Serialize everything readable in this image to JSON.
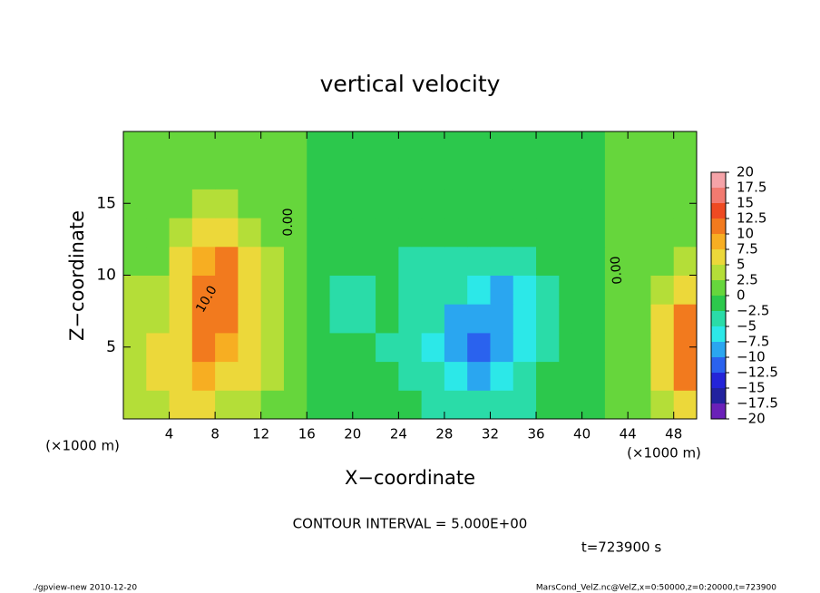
{
  "chart_data": {
    "type": "contour",
    "title": "vertical velocity",
    "xlabel": "X−coordinate",
    "ylabel": "Z−coordinate",
    "x_unit": "(×1000 m)",
    "y_unit": "(×1000 m)",
    "xlim": [
      0,
      50
    ],
    "ylim": [
      0,
      20
    ],
    "xticks": [
      4,
      8,
      12,
      16,
      20,
      24,
      28,
      32,
      36,
      40,
      44,
      48
    ],
    "yticks": [
      5,
      10,
      15
    ],
    "x": [
      1,
      3,
      5,
      7,
      9,
      11,
      13,
      15,
      17,
      19,
      21,
      23,
      25,
      27,
      29,
      31,
      33,
      35,
      37,
      39,
      41,
      43,
      45,
      47,
      49
    ],
    "y": [
      1,
      3,
      5,
      7,
      9,
      11,
      13,
      15,
      17,
      19
    ],
    "z": [
      [
        3,
        4,
        6,
        5,
        4,
        3,
        2,
        1,
        -1,
        -1,
        -1,
        -1,
        -2,
        -3,
        -4,
        -5,
        -4,
        -3,
        -1,
        -1,
        -1,
        1,
        2,
        4,
        6
      ],
      [
        3,
        5,
        7,
        8,
        7,
        5,
        3,
        1,
        -1,
        -1,
        -1,
        -2,
        -3,
        -5,
        -7,
        -9,
        -7,
        -4,
        -2,
        -1,
        -1,
        1,
        2,
        5,
        10
      ],
      [
        4,
        5,
        7,
        10,
        9,
        6,
        3,
        1,
        -1,
        -2,
        -2,
        -3,
        -4,
        -6,
        -9,
        -12,
        -10,
        -6,
        -3,
        -1,
        -1,
        1,
        2,
        6,
        12
      ],
      [
        4,
        4,
        6,
        11,
        11,
        7,
        3,
        1,
        -1,
        -3,
        -3,
        -2,
        -3,
        -5,
        -8,
        -9,
        -10,
        -7,
        -3,
        -2,
        -1,
        1,
        2,
        5,
        10
      ],
      [
        3,
        3,
        5,
        11,
        12,
        7,
        3,
        1,
        -1,
        -3,
        -3,
        -2,
        -3,
        -4,
        -5,
        -7,
        -8,
        -6,
        -3,
        -2,
        -1,
        1,
        1,
        4,
        6
      ],
      [
        1,
        2,
        5,
        9,
        10,
        6,
        3,
        1,
        -1,
        -2,
        -2,
        -2,
        -3,
        -3,
        -4,
        -5,
        -4,
        -3,
        -2,
        -1,
        -1,
        1,
        1,
        2,
        3
      ],
      [
        1,
        1,
        3,
        6,
        6,
        4,
        2,
        1,
        -1,
        -1,
        -1,
        -1,
        -2,
        -2,
        -2,
        -2,
        -2,
        -2,
        -1,
        -1,
        -1,
        1,
        1,
        1,
        1
      ],
      [
        1,
        1,
        2,
        3,
        3,
        2,
        1,
        1,
        -1,
        -1,
        -1,
        -1,
        -1,
        -1,
        -1,
        -1,
        -1,
        -1,
        -1,
        -1,
        -1,
        1,
        1,
        1,
        1
      ],
      [
        1,
        1,
        1,
        1,
        1,
        1,
        1,
        1,
        -1,
        -1,
        -1,
        -1,
        -1,
        -1,
        -1,
        -1,
        -1,
        -1,
        -1,
        -1,
        -1,
        1,
        1,
        1,
        1
      ],
      [
        1,
        1,
        1,
        1,
        1,
        1,
        1,
        1,
        -1,
        -1,
        -1,
        -1,
        -1,
        -1,
        -1,
        -1,
        -1,
        -1,
        -1,
        -1,
        -1,
        1,
        1,
        1,
        1
      ]
    ],
    "levels": [
      20,
      17.5,
      15,
      12.5,
      10,
      7.5,
      5,
      2.5,
      0,
      {
        "value": -2.5,
        "label": "−2.5"
      },
      {
        "value": -5,
        "label": "−5"
      },
      {
        "value": -7.5,
        "label": "−7.5"
      },
      {
        "value": -10,
        "label": "−10"
      },
      {
        "value": -12.5,
        "label": "−12.5"
      },
      {
        "value": -15,
        "label": "−15"
      },
      {
        "value": -17.5,
        "label": "−17.5"
      },
      {
        "value": -20,
        "label": "−20"
      }
    ],
    "colors": [
      "#f5a3a8",
      "#f27a70",
      "#ee4a22",
      "#f27a1e",
      "#f7ae22",
      "#ecd83a",
      "#b4de38",
      "#66d63c",
      "#2cc84c",
      "#2adca8",
      "#2ce8e8",
      "#2aa6f0",
      "#2a62ee",
      "#2424d8",
      "#22229e",
      "#6a20b8"
    ],
    "contour_labels": [
      "0.00",
      "10.0",
      "0.00"
    ],
    "annotation": "CONTOUR INTERVAL = 5.000E+00",
    "time_label": "t=723900 s",
    "footer_left": "./gpview-new  2010-12-20",
    "footer_right": "MarsCond_VelZ.nc@VelZ,x=0:50000,z=0:20000,t=723900"
  }
}
